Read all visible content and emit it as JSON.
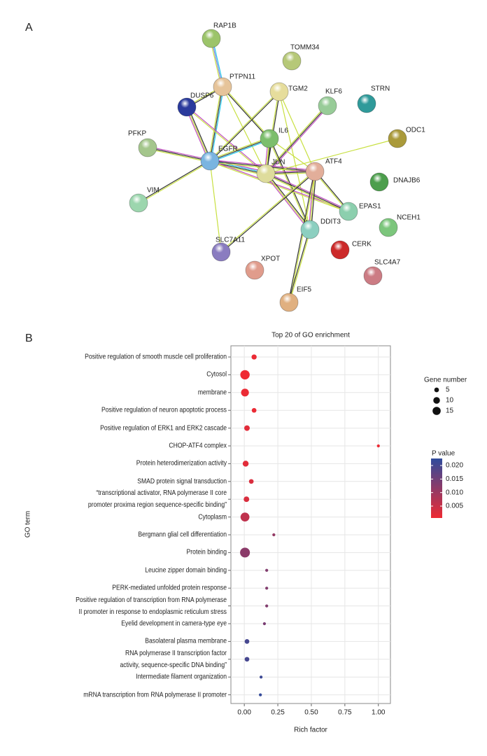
{
  "panel_labels": [
    "A",
    "B"
  ],
  "network_nodes": [
    "RAP1B",
    "TOMM34",
    "PTPN11",
    "TGM2",
    "KLF6",
    "STRN",
    "DUSP6",
    "ODC1",
    "PFKP",
    "IL6",
    "EGFR",
    "JUN",
    "ATF4",
    "DNAJB6",
    "VIM",
    "EPAS1",
    "NCEH1",
    "DDIT3",
    "SLC7A11",
    "CERK",
    "XPOT",
    "SLC4A7",
    "EIF5"
  ],
  "chart_data": {
    "type": "bubble",
    "title": "Top 20 of GO enrichment",
    "x_label": "Rich factor",
    "y_label": "GO term",
    "categories": [
      "Positive regulation of smooth muscle cell proliferation",
      "Cytosol",
      "membrane",
      "Positive regulation of neuron apoptotic process",
      "Positive regulation of ERK1 and ERK2 cascade",
      "CHOP-ATF4 complex",
      "Protein heterodimerization activity",
      "SMAD protein signal transduction",
      "“transcriptional activator, RNA polymerase II core\npromoter proxima region sequence-specific binding”",
      "Cytoplasm",
      "Bergmann glial cell differentiation",
      "Protein binding",
      "Leucine zipper domain binding",
      "PERK-mediated unfolded protein response",
      "Positive regulation of transcription from RNA polymerase\nII promoter in response to endoplasmic reticulum stress",
      "Eyelid development in camera-type eye",
      "Basolateral plasma membrane",
      "RNA polymerase II transcription factor\nactivity, sequence-specific DNA binding”",
      "Intermediate filament organization",
      "mRNA transcription from RNA polymerase II promoter"
    ],
    "values": [
      0.073,
      0.005,
      0.005,
      0.073,
      0.02,
      1.0,
      0.01,
      0.052,
      0.016,
      0.005,
      0.22,
      0.005,
      0.167,
      0.167,
      0.167,
      0.15,
      0.02,
      0.02,
      0.125,
      0.12
    ],
    "sizes": [
      6,
      20,
      14,
      5,
      7,
      2,
      8,
      5,
      7,
      18,
      2,
      22,
      2,
      2,
      2,
      2,
      5,
      5,
      2,
      2
    ],
    "p_values": [
      0.001,
      0.0005,
      0.001,
      0.001,
      0.002,
      0.0008,
      0.002,
      0.003,
      0.003,
      0.006,
      0.011,
      0.012,
      0.013,
      0.013,
      0.013,
      0.014,
      0.02,
      0.02,
      0.021,
      0.022
    ],
    "xlim": [
      -0.1,
      1.09
    ],
    "xticks": [
      {
        "value": 0,
        "label": "0.00"
      },
      {
        "value": 0.25,
        "label": "0.25"
      },
      {
        "value": 0.5,
        "label": "0.50"
      },
      {
        "value": 0.75,
        "label": "0.75"
      },
      {
        "value": 1,
        "label": "1.00"
      }
    ],
    "grid": true,
    "size_legend_title": "Gene number",
    "size_legend": [
      5,
      10,
      15
    ],
    "color_legend_title": "P value",
    "clim": [
      0.0006,
      0.0226
    ],
    "colorscale": [
      "#ee2a33",
      "#2f4b9c"
    ],
    "color_ticks": [
      {
        "value": 0.02,
        "label": "0.020"
      },
      {
        "value": 0.015,
        "label": "0.015"
      },
      {
        "value": 0.01,
        "label": "0.010"
      },
      {
        "value": 0.005,
        "label": "0.005"
      }
    ]
  }
}
